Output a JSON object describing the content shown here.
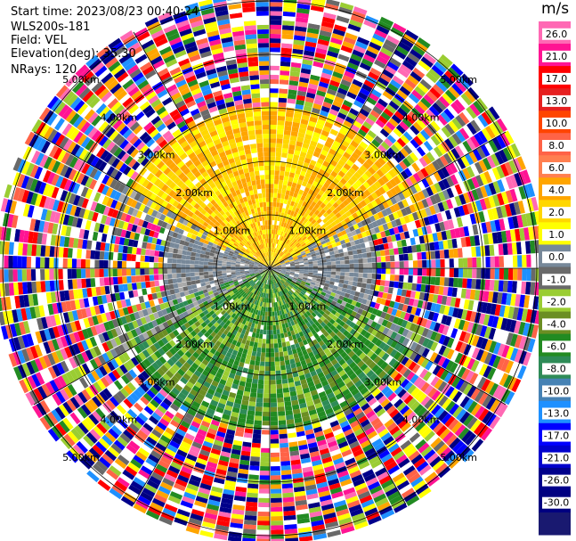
{
  "header": {
    "start_time": "Start time: 2023/08/23 00:40:24",
    "site": "WLS200s-181",
    "field": "Field: VEL",
    "elevation": "Elevation(deg): 35.30",
    "nrays": "NRays: 120"
  },
  "chart_data": {
    "type": "heatmap",
    "projection": "polar-ppi",
    "field": "VEL",
    "units": "m/s",
    "n_rays": 120,
    "range_rings_km": [
      1.0,
      2.0,
      3.0,
      4.0,
      5.0
    ],
    "range_ring_labels": [
      "1.00km",
      "2.00km",
      "3.00km",
      "4.00km",
      "5.00km"
    ],
    "spokes_deg": [
      0,
      30,
      60,
      90,
      120,
      150,
      180,
      210,
      240,
      270,
      300,
      330
    ],
    "colorbar": {
      "title": "m/s",
      "ticks": [
        "26.0",
        "21.0",
        "17.0",
        "13.0",
        "10.0",
        "8.0",
        "6.0",
        "4.0",
        "2.0",
        "1.0",
        "0.0",
        "-1.0",
        "-2.0",
        "-4.0",
        "-6.0",
        "-8.0",
        "-10.0",
        "-13.0",
        "-17.0",
        "-21.0",
        "-26.0",
        "-30.0"
      ],
      "colors": [
        "#ff69b4",
        "#ff1493",
        "#ff0000",
        "#e62020",
        "#ff4500",
        "#ff6347",
        "#ff7f50",
        "#ffa500",
        "#ffd700",
        "#ffff00",
        "#778899",
        "#696969",
        "#9acd32",
        "#6b8e23",
        "#228b22",
        "#2e8b57",
        "#4682b4",
        "#1e90ff",
        "#0000ff",
        "#0000cd",
        "#00008b",
        "#000080",
        "#191970"
      ]
    },
    "sectors": [
      {
        "azimuth_range_deg": [
          300,
          60
        ],
        "range_km": [
          0,
          3.0
        ],
        "dominant_velocity_ms": [
          2.0,
          6.0
        ],
        "color_band": "yellow-orange"
      },
      {
        "azimuth_range_deg": [
          70,
          110
        ],
        "range_km": [
          0,
          2.0
        ],
        "dominant_velocity_ms": [
          -1.0,
          1.0
        ],
        "color_band": "grey"
      },
      {
        "azimuth_range_deg": [
          250,
          290
        ],
        "range_km": [
          0,
          2.0
        ],
        "dominant_velocity_ms": [
          -1.0,
          1.0
        ],
        "color_band": "grey"
      },
      {
        "azimuth_range_deg": [
          120,
          240
        ],
        "range_km": [
          0,
          3.0
        ],
        "dominant_velocity_ms": [
          -6.0,
          -2.0
        ],
        "color_band": "green"
      },
      {
        "azimuth_range_deg": [
          0,
          360
        ],
        "range_km": [
          3.0,
          5.0
        ],
        "dominant_velocity_ms": "noise",
        "color_band": "mixed"
      }
    ]
  }
}
